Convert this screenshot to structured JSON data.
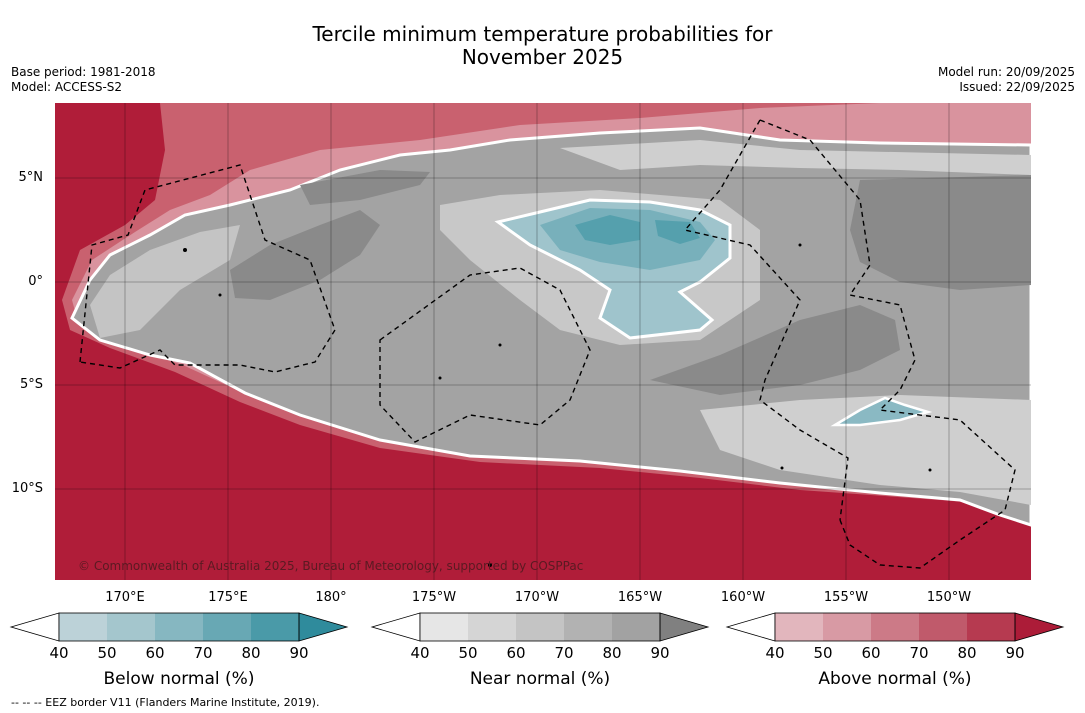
{
  "header": {
    "title_line1": "Tercile minimum temperature probabilities for",
    "title_line2": "November 2025",
    "base_period": "Base period: 1981-2018",
    "model": "Model: ACCESS-S2",
    "model_run": "Model run: 20/09/2025",
    "issued": "Issued: 22/09/2025"
  },
  "map": {
    "lat_labels": [
      "5°N",
      "0°",
      "5°S",
      "10°S"
    ],
    "lon_labels": [
      "170°E",
      "175°E",
      "180°",
      "175°W",
      "170°W",
      "165°W",
      "160°W",
      "155°W",
      "150°W"
    ],
    "copyright": "© Commonwealth of Australia 2025, Bureau of Meteorology, supported by COSPPac",
    "colors": {
      "above_base": "#b01d39",
      "near_dark": "#8a8a8a",
      "near_mid": "#a3a3a3",
      "near_light": "#cfcfcf"
    }
  },
  "colorbars": [
    {
      "title": "Below normal (%)",
      "ticks": [
        "40",
        "50",
        "60",
        "70",
        "80",
        "90"
      ],
      "colors": [
        "#bcd2d8",
        "#a4c6cd",
        "#86b7c1",
        "#68a8b4",
        "#4a9aa8",
        "#2f8b9c"
      ]
    },
    {
      "title": "Near normal (%)",
      "ticks": [
        "40",
        "50",
        "60",
        "70",
        "80",
        "90"
      ],
      "colors": [
        "#e6e6e6",
        "#d5d5d5",
        "#c4c4c4",
        "#b2b2b2",
        "#a2a2a2",
        "#808080"
      ]
    },
    {
      "title": "Above normal (%)",
      "ticks": [
        "40",
        "50",
        "60",
        "70",
        "80",
        "90"
      ],
      "colors": [
        "#e2b6bd",
        "#d89aa4",
        "#cc7a87",
        "#c05a6b",
        "#b63a50",
        "#ac1c38"
      ]
    }
  ],
  "footer": {
    "legend": "--  --  -- EEZ border V11 (Flanders Marine Institute, 2019)."
  }
}
